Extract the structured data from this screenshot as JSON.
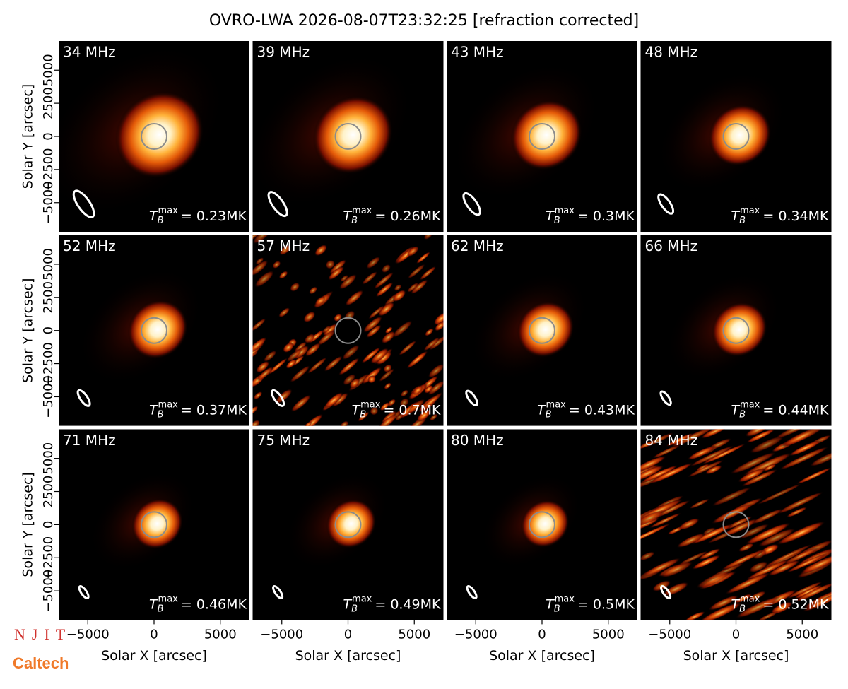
{
  "title": "OVRO-LWA 2026-08-07T23:32:25 [refraction corrected]",
  "symbol": {
    "main": "T",
    "sub": "B",
    "sup": "max"
  },
  "logos": {
    "njit": "NJIT",
    "caltech": "Caltech"
  },
  "chart_data": [
    {
      "type": "image",
      "title": "34 MHz",
      "annotation": "= 0.23MK",
      "xlim": [
        -7200,
        7200
      ],
      "ylim": [
        -7200,
        7200
      ],
      "ylabel": "Solar Y [arcsec]",
      "yticks": [
        {
          "value": -5000,
          "label": "−5000"
        },
        {
          "value": -2500,
          "label": "−2500"
        },
        0,
        2500,
        5000
      ]
    },
    {
      "type": "image",
      "title": "39 MHz",
      "annotation": "= 0.26MK",
      "xlim": [
        -7200,
        7200
      ],
      "ylim": [
        -7200,
        7200
      ]
    },
    {
      "type": "image",
      "title": "43 MHz",
      "annotation": "= 0.3MK",
      "xlim": [
        -7200,
        7200
      ],
      "ylim": [
        -7200,
        7200
      ]
    },
    {
      "type": "image",
      "title": "48 MHz",
      "annotation": "= 0.34MK",
      "xlim": [
        -7200,
        7200
      ],
      "ylim": [
        -7200,
        7200
      ]
    },
    {
      "type": "image",
      "title": "52 MHz",
      "annotation": "= 0.37MK",
      "xlim": [
        -7200,
        7200
      ],
      "ylim": [
        -7200,
        7200
      ],
      "ylabel": "Solar Y [arcsec]",
      "yticks": [
        {
          "value": -5000,
          "label": "−5000"
        },
        {
          "value": -2500,
          "label": "−2500"
        },
        0,
        2500,
        5000
      ]
    },
    {
      "type": "noise",
      "title": "57 MHz",
      "annotation": "= 0.7MK",
      "xlim": [
        -7200,
        7200
      ],
      "ylim": [
        -7200,
        7200
      ]
    },
    {
      "type": "image",
      "title": "62 MHz",
      "annotation": "= 0.43MK",
      "xlim": [
        -7200,
        7200
      ],
      "ylim": [
        -7200,
        7200
      ]
    },
    {
      "type": "image",
      "title": "66 MHz",
      "annotation": "= 0.44MK",
      "xlim": [
        -7200,
        7200
      ],
      "ylim": [
        -7200,
        7200
      ]
    },
    {
      "type": "image",
      "title": "71 MHz",
      "annotation": "= 0.46MK",
      "xlim": [
        -7200,
        7200
      ],
      "ylim": [
        -7200,
        7200
      ],
      "ylabel": "Solar Y [arcsec]",
      "xlabel": "Solar X [arcsec]",
      "yticks": [
        {
          "value": -5000,
          "label": "−5000"
        },
        {
          "value": -2500,
          "label": "−2500"
        },
        0,
        2500,
        5000
      ],
      "xticks": [
        {
          "value": -5000,
          "label": "−5000"
        },
        0,
        5000
      ]
    },
    {
      "type": "image",
      "title": "75 MHz",
      "annotation": "= 0.49MK",
      "xlim": [
        -7200,
        7200
      ],
      "ylim": [
        -7200,
        7200
      ],
      "xlabel": "Solar X [arcsec]",
      "xticks": [
        {
          "value": -5000,
          "label": "−5000"
        },
        0,
        5000
      ]
    },
    {
      "type": "image",
      "title": "80 MHz",
      "annotation": "= 0.5MK",
      "xlim": [
        -7200,
        7200
      ],
      "ylim": [
        -7200,
        7200
      ],
      "xlabel": "Solar X [arcsec]",
      "xticks": [
        {
          "value": -5000,
          "label": "−5000"
        },
        0,
        5000
      ]
    },
    {
      "type": "streaks",
      "title": "84 MHz",
      "annotation": "= 0.52MK",
      "xlim": [
        -7200,
        7200
      ],
      "ylim": [
        -7200,
        7200
      ],
      "xlabel": "Solar X [arcsec]",
      "xticks": [
        {
          "value": -5000,
          "label": "−5000"
        },
        0,
        5000
      ]
    }
  ]
}
